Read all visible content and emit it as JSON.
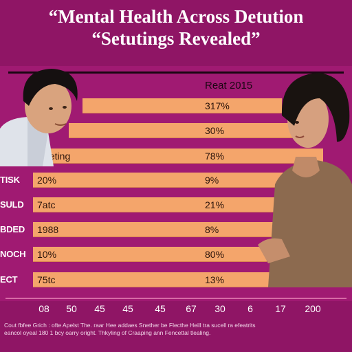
{
  "title": {
    "line1": "“Mental Health Across Detution",
    "line2": "“Setutings Revealed”"
  },
  "table": {
    "header_right": "Reat 2015",
    "rows": [
      {
        "label": "",
        "left": "",
        "right": "317%"
      },
      {
        "label": "",
        "left": "",
        "right": "30%"
      },
      {
        "label": "",
        "left": "Cheting",
        "right": "78%"
      },
      {
        "label": "TISK",
        "left": "20%",
        "right": "9%"
      },
      {
        "label": "SULD",
        "left": "7atc",
        "right": "21%"
      },
      {
        "label": "BDED",
        "left": "1988",
        "right": "8%"
      },
      {
        "label": "NOCH",
        "left": "10%",
        "right": "80%"
      },
      {
        "label": "ECT",
        "left": "75tc",
        "right": "13%"
      }
    ]
  },
  "axis": {
    "ticks": [
      "08",
      "50",
      "45",
      "45",
      "45",
      "67",
      "30",
      "6",
      "17",
      "200"
    ]
  },
  "footnote": {
    "line1": "Cout fbfee Grich : ofte Apelst The. raar Hee addaes Snether be Flecthe Heill tra sucell ra efeatrits",
    "line2": "eancol oyeal 180 1 bcy oarry oright. Thkyling of Craaping ann Fencettal tlealing."
  },
  "people": {
    "left_icon": "man-looking-down-icon",
    "right_icon": "woman-looking-down-icon"
  },
  "colors": {
    "background": "#8f1565",
    "bar": "#f4a56b",
    "title": "#ffffff"
  }
}
